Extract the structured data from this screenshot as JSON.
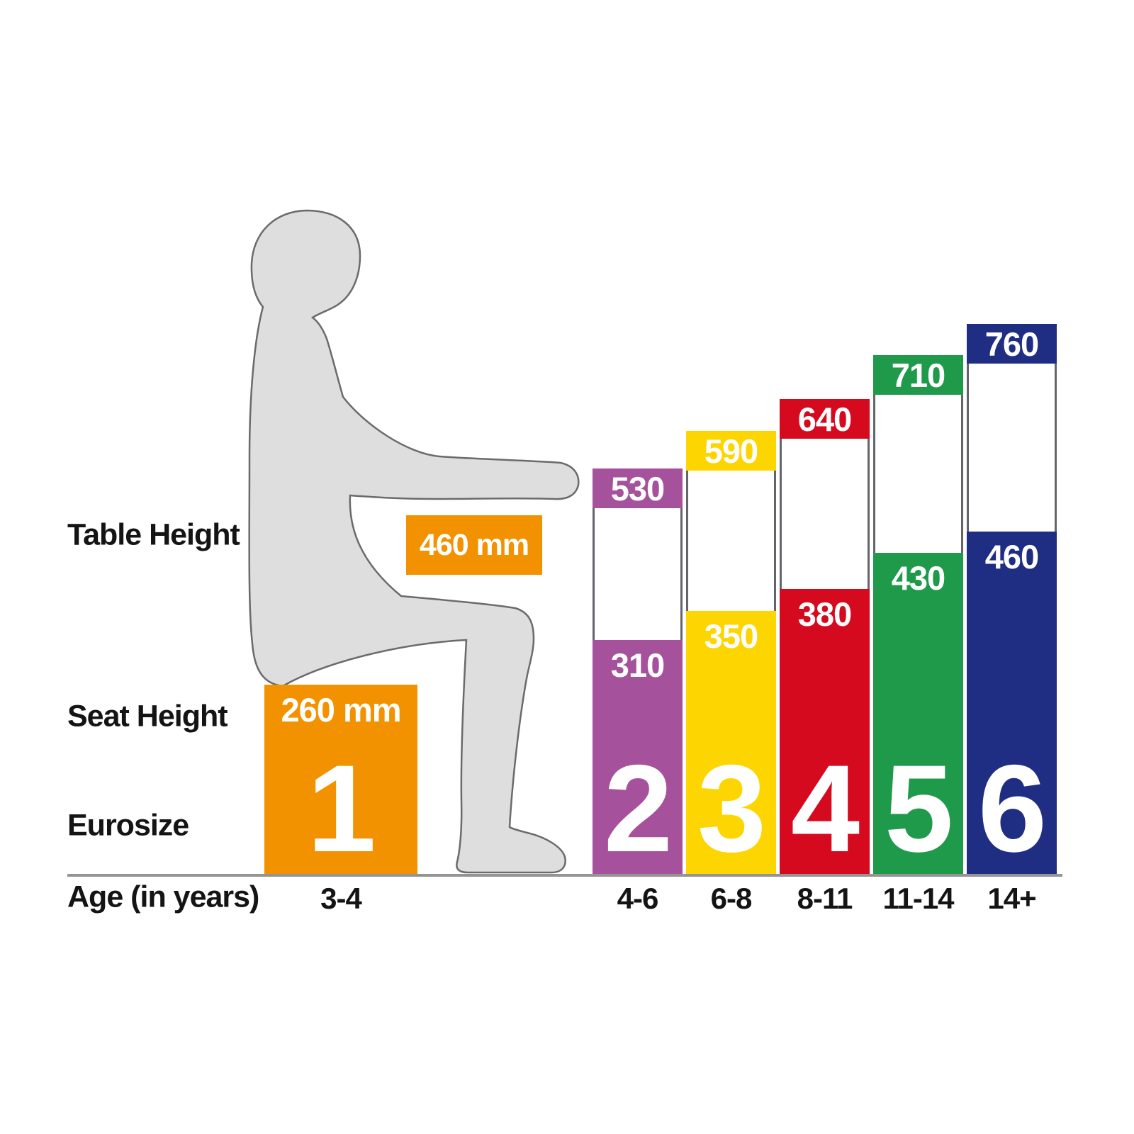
{
  "labels": {
    "table_height": "Table Height",
    "seat_height": "Seat Height",
    "eurosize": "Eurosize",
    "age": "Age (in years)"
  },
  "size1": {
    "table_value": "460 mm",
    "seat_value": "260 mm",
    "size": "1",
    "age": "3-4",
    "color": "#F39200"
  },
  "columns": [
    {
      "size": "2",
      "table": "530",
      "seat": "310",
      "age": "4-6",
      "color": "#A5519B"
    },
    {
      "size": "3",
      "table": "590",
      "seat": "350",
      "age": "6-8",
      "color": "#FDD500"
    },
    {
      "size": "4",
      "table": "640",
      "seat": "380",
      "age": "8-11",
      "color": "#D50A1E"
    },
    {
      "size": "5",
      "table": "710",
      "seat": "430",
      "age": "11-14",
      "color": "#1F9A4B"
    },
    {
      "size": "6",
      "table": "760",
      "seat": "460",
      "age": "14+",
      "color": "#1F2E83"
    }
  ],
  "chart_data": {
    "type": "bar",
    "categories": [
      "1",
      "2",
      "3",
      "4",
      "5",
      "6"
    ],
    "ages": [
      "3-4",
      "4-6",
      "6-8",
      "8-11",
      "11-14",
      "14+"
    ],
    "series": [
      {
        "name": "Table Height (mm)",
        "values": [
          460,
          530,
          590,
          640,
          710,
          760
        ]
      },
      {
        "name": "Seat Height (mm)",
        "values": [
          260,
          310,
          350,
          380,
          430,
          460
        ]
      }
    ],
    "colors": [
      "#F39200",
      "#A5519B",
      "#FDD500",
      "#D50A1E",
      "#00913C",
      "#1F2E83"
    ],
    "unit": "mm",
    "legend": "off",
    "grid": "off"
  },
  "figure": {
    "fill": "#DEDEDE",
    "outline": "#6A6A6F"
  }
}
